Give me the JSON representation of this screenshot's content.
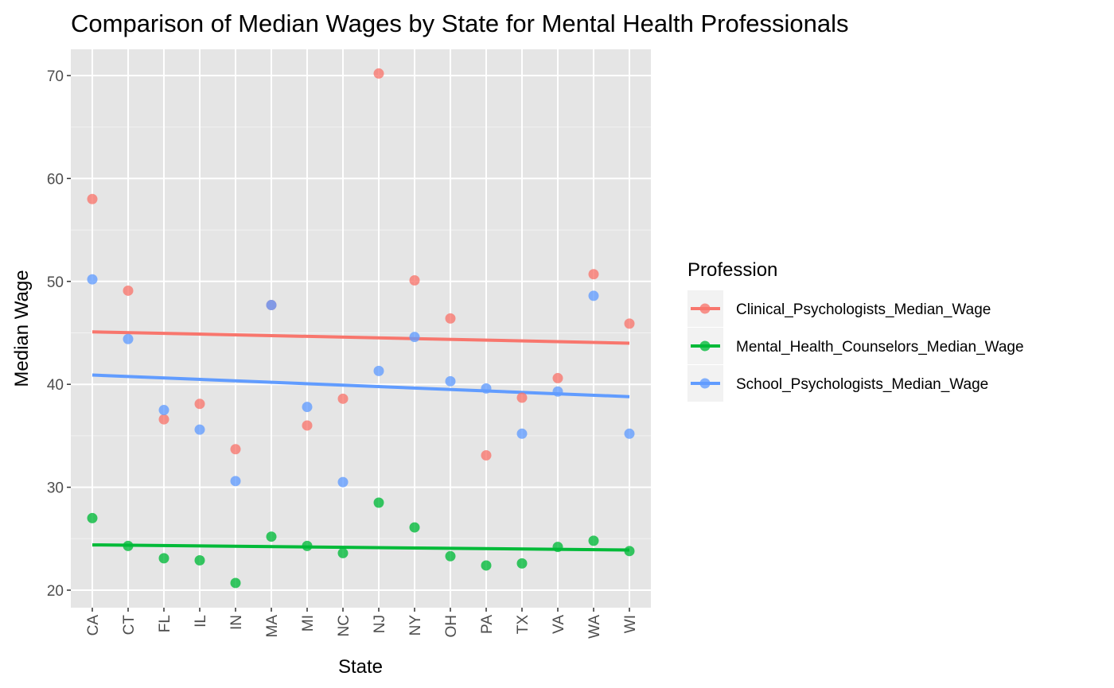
{
  "chart_data": {
    "type": "scatter",
    "title": "Comparison of Median Wages by State for Mental Health Professionals",
    "xlabel": "State",
    "ylabel": "Median Wage",
    "categories": [
      "CA",
      "CT",
      "FL",
      "IL",
      "IN",
      "MA",
      "MI",
      "NC",
      "NJ",
      "NY",
      "OH",
      "PA",
      "TX",
      "VA",
      "WA",
      "WI"
    ],
    "yticks": [
      20,
      30,
      40,
      50,
      60,
      70
    ],
    "ylim": [
      18.5,
      72.5
    ],
    "grid": true,
    "legend": {
      "title": "Profession",
      "position": "right"
    },
    "series": [
      {
        "name": "Clinical_Psychologists_Median_Wage",
        "color": "#F8766D",
        "values": [
          58.0,
          49.1,
          36.6,
          38.1,
          33.7,
          47.7,
          36.0,
          38.6,
          70.2,
          50.1,
          46.4,
          33.1,
          38.7,
          40.6,
          50.7,
          45.9
        ],
        "trend": [
          45.1,
          44.0
        ]
      },
      {
        "name": "Mental_Health_Counselors_Median_Wage",
        "color": "#00BA38",
        "values": [
          27.0,
          24.3,
          23.1,
          22.9,
          20.7,
          25.2,
          24.3,
          23.6,
          28.5,
          26.1,
          23.3,
          22.4,
          22.6,
          24.2,
          24.8,
          23.8
        ],
        "trend": [
          24.4,
          23.9
        ]
      },
      {
        "name": "School_Psychologists_Median_Wage",
        "color": "#619CFF",
        "values": [
          50.2,
          44.4,
          37.5,
          35.6,
          30.6,
          47.7,
          37.8,
          30.5,
          41.3,
          44.6,
          40.3,
          39.6,
          35.2,
          39.3,
          48.6,
          35.2
        ],
        "trend": [
          40.9,
          38.8
        ]
      }
    ]
  }
}
